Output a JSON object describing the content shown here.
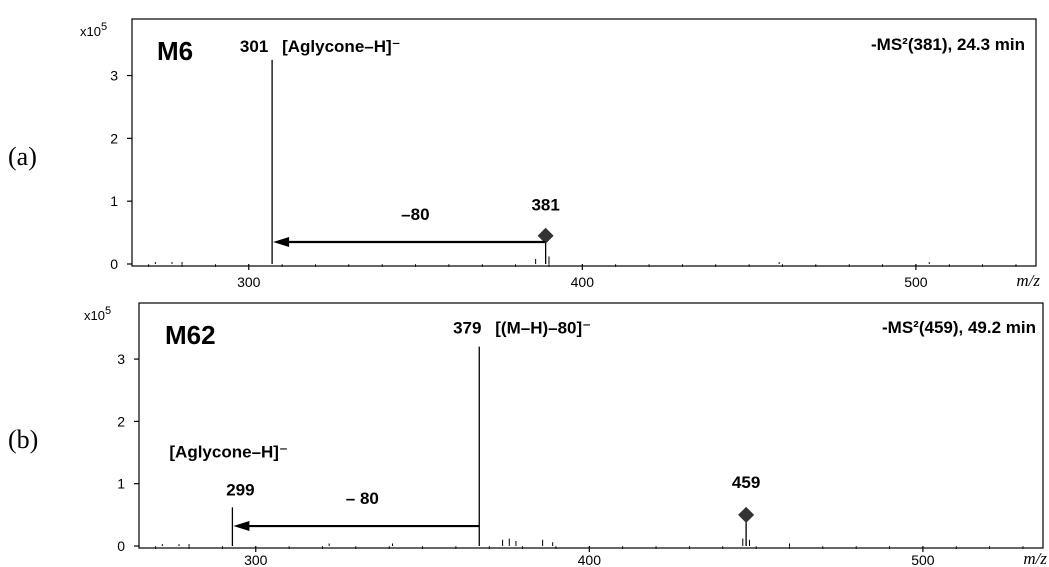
{
  "chart_data": [
    {
      "type": "bar",
      "panel_label": "(a)",
      "compound": "M6",
      "scan_info": "-MS²(381), 24.3 min",
      "y_multiplier": "x10",
      "y_exponent": "5",
      "xlabel": "m/z",
      "xlim": [
        265,
        536
      ],
      "ylim": [
        0,
        3.9
      ],
      "x_ticks": [
        300,
        400,
        500
      ],
      "y_ticks": [
        0,
        1,
        2,
        3
      ],
      "peaks": [
        {
          "mz": 307,
          "intensity": 3.25,
          "label": "301",
          "annotation": "[Aglycone–H]⁻"
        },
        {
          "mz": 389,
          "intensity": 0.45,
          "label": "381",
          "annotation": ""
        }
      ],
      "minor_peaks": [
        {
          "mz": 272,
          "intensity": 0.03
        },
        {
          "mz": 277,
          "intensity": 0.03
        },
        {
          "mz": 280,
          "intensity": 0.03
        },
        {
          "mz": 386,
          "intensity": 0.08
        },
        {
          "mz": 390,
          "intensity": 0.12
        },
        {
          "mz": 459,
          "intensity": 0.03
        },
        {
          "mz": 504,
          "intensity": 0.03
        }
      ],
      "loss_arrow": {
        "from_mz": 389,
        "to_mz": 307,
        "label": "–80",
        "intensity": 0.35
      },
      "precursor_marker_mz": 389
    },
    {
      "type": "bar",
      "panel_label": "(b)",
      "compound": "M62",
      "scan_info": "-MS²(459), 49.2 min",
      "y_multiplier": "x10",
      "y_exponent": "5",
      "xlabel": "m/z",
      "xlim": [
        265,
        536
      ],
      "ylim": [
        0,
        3.9
      ],
      "x_ticks": [
        300,
        400,
        500
      ],
      "y_ticks": [
        0,
        1,
        2,
        3
      ],
      "peaks": [
        {
          "mz": 293,
          "intensity": 0.62,
          "label": "299",
          "annotation": "[Aglycone–H]⁻"
        },
        {
          "mz": 367,
          "intensity": 3.2,
          "label": "379",
          "annotation": "[(M–H)–80]⁻"
        },
        {
          "mz": 447,
          "intensity": 0.5,
          "label": "459",
          "annotation": ""
        }
      ],
      "minor_peaks": [
        {
          "mz": 272,
          "intensity": 0.03
        },
        {
          "mz": 277,
          "intensity": 0.03
        },
        {
          "mz": 280,
          "intensity": 0.03
        },
        {
          "mz": 322,
          "intensity": 0.04
        },
        {
          "mz": 341,
          "intensity": 0.04
        },
        {
          "mz": 374,
          "intensity": 0.1
        },
        {
          "mz": 376,
          "intensity": 0.12
        },
        {
          "mz": 378,
          "intensity": 0.08
        },
        {
          "mz": 386,
          "intensity": 0.1
        },
        {
          "mz": 389,
          "intensity": 0.06
        },
        {
          "mz": 446,
          "intensity": 0.12
        },
        {
          "mz": 448,
          "intensity": 0.1
        },
        {
          "mz": 460,
          "intensity": 0.04
        }
      ],
      "loss_arrow": {
        "from_mz": 367,
        "to_mz": 293,
        "label": "– 80",
        "intensity": 0.32
      },
      "precursor_marker_mz": 447
    }
  ]
}
